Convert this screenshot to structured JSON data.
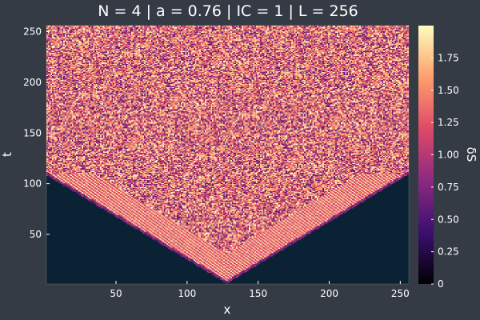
{
  "chart_data": {
    "type": "heatmap",
    "title": "N = 4 | a = 0.76 | IC = 1 | L = 256",
    "xlabel": "x",
    "ylabel": "t",
    "colorbar_label": "δS",
    "xlim": [
      1,
      256
    ],
    "ylim": [
      1,
      256
    ],
    "xticks": [
      50,
      100,
      150,
      200,
      250
    ],
    "yticks": [
      50,
      100,
      150,
      200,
      250
    ],
    "colorbar_range": [
      0,
      2
    ],
    "colorbar_ticks": [
      "0",
      "0.25",
      "0.50",
      "0.75",
      "1.00",
      "1.25",
      "1.50",
      "1.75"
    ],
    "colormap": [
      "#000004",
      "#3b0f70",
      "#8c2981",
      "#de4968",
      "#fe9f6d",
      "#fcfdbf"
    ],
    "background_color": "#0a2233",
    "cone_apex": {
      "x": 128,
      "t": 1
    },
    "cone_edge_at_boundary_t": 108,
    "grid": false
  }
}
